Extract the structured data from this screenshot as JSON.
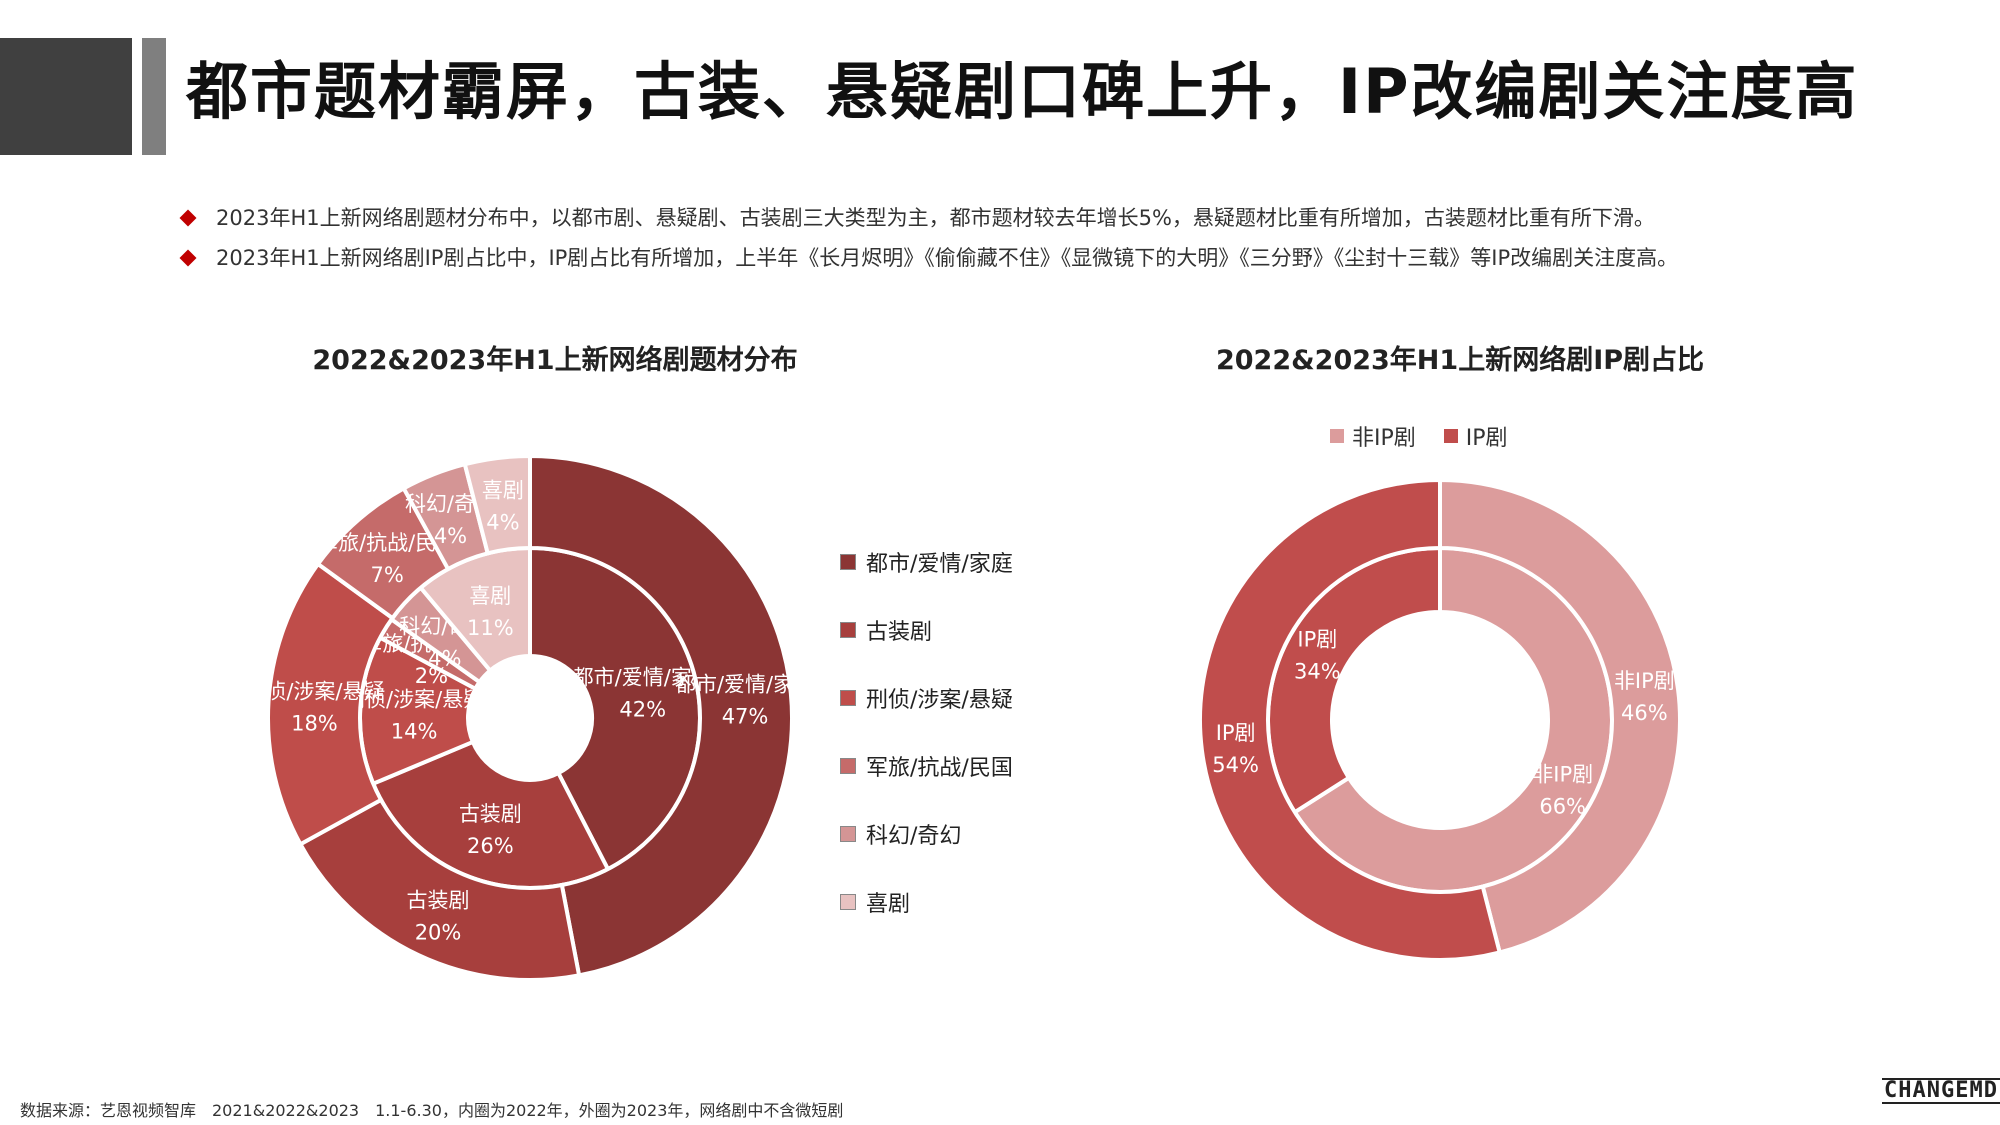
{
  "title": "都市题材霸屏，古装、悬疑剧口碑上升，IP改编剧关注度高",
  "bullets": [
    "2023年H1上新网络剧题材分布中，以都市剧、悬疑剧、古装剧三大类型为主，都市题材较去年增长5%，悬疑题材比重有所增加，古装题材比重有所下滑。",
    "2023年H1上新网络剧IP剧占比中，IP剧占比有所增加，上半年《长月烬明》《偷偷藏不住》《显微镜下的大明》《三分野》《尘封十三载》等IP改编剧关注度高。"
  ],
  "footer_source": "数据来源：艺恩视频智库　2021&2022&2023　1.1-6.30，内圈为2022年，外圈为2023年，网络剧中不含微短剧",
  "logo_text": "CHANGEMD",
  "chart_data": [
    {
      "type": "donut",
      "title": "2022&2023年H1上新网络剧题材分布",
      "categories": [
        "都市/爱情/家庭",
        "古装剧",
        "刑侦/涉案/悬疑",
        "军旅/抗战/民国",
        "科幻/奇幻",
        "喜剧"
      ],
      "colors": [
        "#8b3534",
        "#a73f3d",
        "#bf4d4a",
        "#c56b6a",
        "#d49595",
        "#e8c2c1"
      ],
      "series": [
        {
          "name": "2022",
          "ring": "inner",
          "values": [
            42,
            26,
            14,
            2,
            4,
            11
          ],
          "labels": [
            "42%",
            "26%",
            "14%",
            "2%",
            "4%",
            "11%"
          ]
        },
        {
          "name": "2023",
          "ring": "outer",
          "values": [
            47,
            20,
            18,
            7,
            4,
            4
          ],
          "labels": [
            "47%",
            "20%",
            "18%",
            "7%",
            "4%",
            "4%"
          ]
        }
      ],
      "legend_position": "right"
    },
    {
      "type": "donut",
      "title": "2022&2023年H1上新网络剧IP剧占比",
      "categories": [
        "非IP剧",
        "IP剧"
      ],
      "colors": [
        "#dc9c9c",
        "#c04d4c"
      ],
      "series": [
        {
          "name": "2022",
          "ring": "inner",
          "values": [
            66,
            34
          ],
          "labels": [
            "66%",
            "34%"
          ]
        },
        {
          "name": "2023",
          "ring": "outer",
          "values": [
            46,
            54
          ],
          "labels": [
            "46%",
            "54%"
          ]
        }
      ],
      "legend_position": "top"
    }
  ]
}
